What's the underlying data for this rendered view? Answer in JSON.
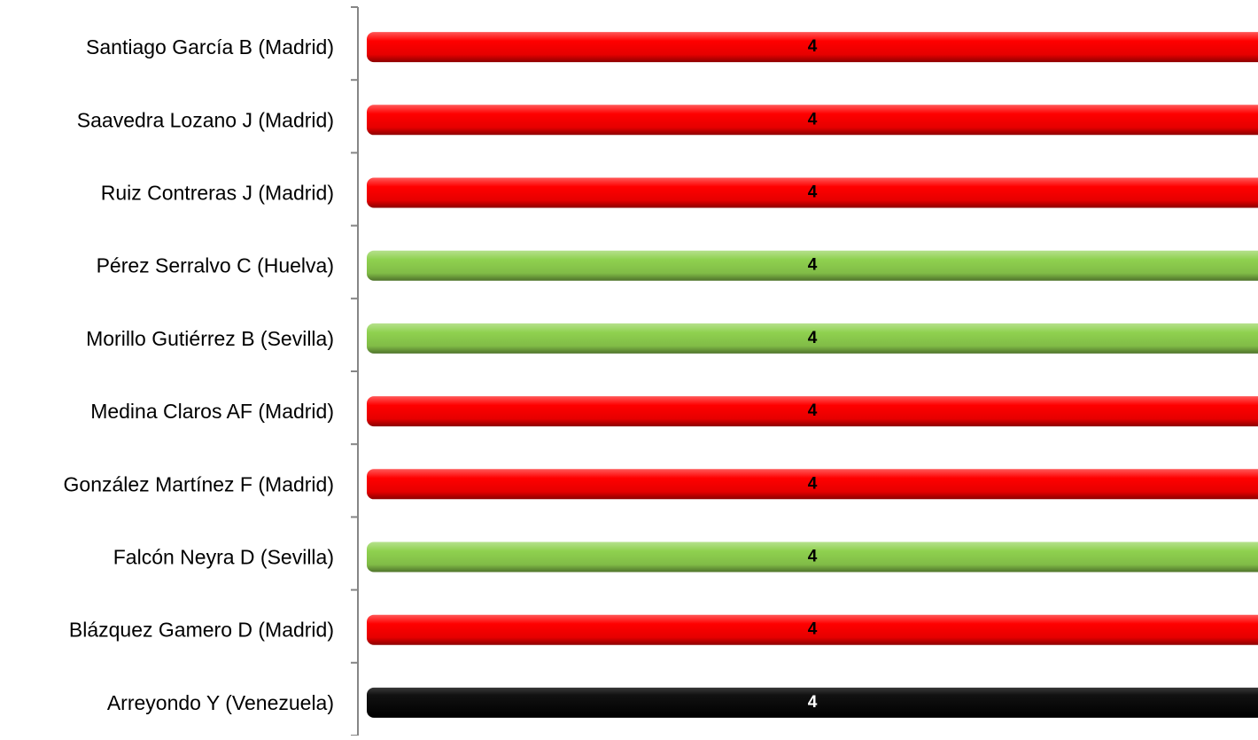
{
  "chart_data": {
    "type": "bar",
    "orientation": "horizontal",
    "categories": [
      "Santiago García B (Madrid)",
      "Saavedra Lozano J (Madrid)",
      "Ruiz Contreras J (Madrid)",
      "Pérez Serralvo C (Huelva)",
      "Morillo Gutiérrez B (Sevilla)",
      "Medina Claros AF (Madrid)",
      "González Martínez F (Madrid)",
      "Falcón Neyra D (Sevilla)",
      "Blázquez Gamero D (Madrid)",
      "Arreyondo Y (Venezuela)"
    ],
    "values": [
      4,
      4,
      4,
      4,
      4,
      4,
      4,
      4,
      4,
      4
    ],
    "data_labels": [
      "4",
      "4",
      "4",
      "4",
      "4",
      "4",
      "4",
      "4",
      "4",
      "4"
    ],
    "bar_colors": [
      "#ff0000",
      "#ff0000",
      "#ff0000",
      "#8fd14f",
      "#8fd14f",
      "#ff0000",
      "#ff0000",
      "#8fd14f",
      "#ff0000",
      "#000000"
    ],
    "label_colors": [
      "#000000",
      "#000000",
      "#000000",
      "#000000",
      "#000000",
      "#000000",
      "#000000",
      "#000000",
      "#000000",
      "#ffffff"
    ],
    "title": "",
    "xlabel": "",
    "ylabel": "",
    "grid": false,
    "legend": "none"
  }
}
